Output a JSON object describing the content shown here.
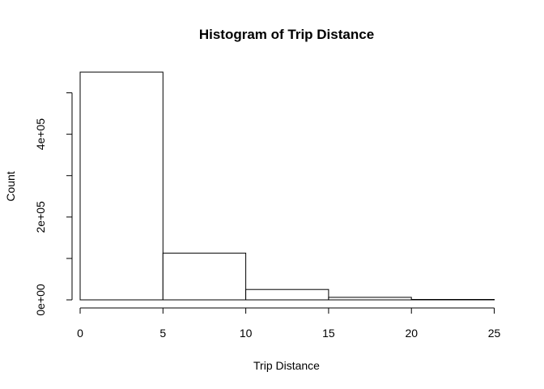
{
  "chart_data": {
    "type": "bar",
    "title": "Histogram of Trip Distance",
    "xlabel": "Trip Distance",
    "ylabel": "Count",
    "bins": [
      {
        "start": 0,
        "end": 5,
        "count": 550000
      },
      {
        "start": 5,
        "end": 10,
        "count": 113000
      },
      {
        "start": 10,
        "end": 15,
        "count": 25000
      },
      {
        "start": 15,
        "end": 20,
        "count": 6000
      },
      {
        "start": 20,
        "end": 25,
        "count": 1000
      },
      {
        "start": 25,
        "end": 26,
        "count": 0
      }
    ],
    "xlim": [
      0,
      26
    ],
    "ylim": [
      0,
      550000
    ],
    "x_ticks": [
      0,
      5,
      10,
      15,
      20,
      25
    ],
    "x_tick_labels": [
      "0",
      "5",
      "10",
      "15",
      "20",
      "25"
    ],
    "y_ticks": [
      0,
      100000,
      200000,
      300000,
      400000,
      500000
    ],
    "y_tick_labels": [
      "0e+00",
      "",
      "2e+05",
      "",
      "4e+05",
      ""
    ],
    "grid": false,
    "colors": {
      "bar_fill": "#ffffff",
      "bar_stroke": "#000000",
      "text": "#000000"
    }
  }
}
